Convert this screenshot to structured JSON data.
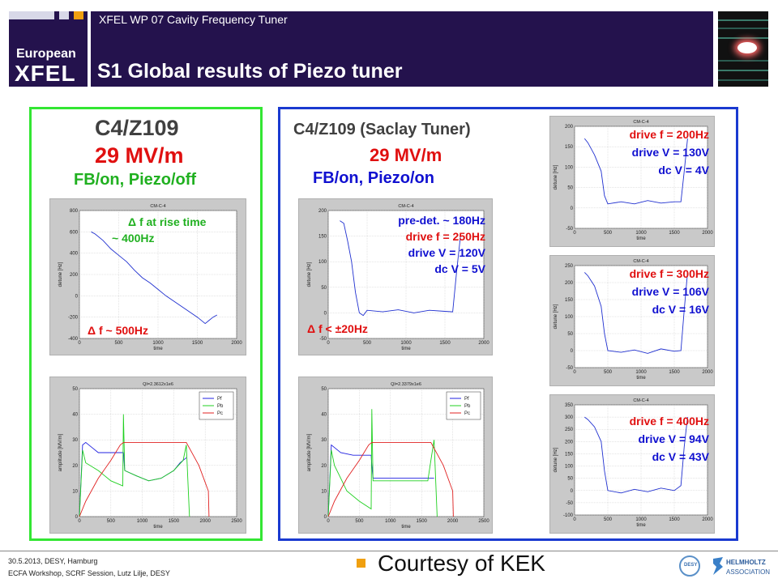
{
  "header": {
    "logo_line1": "European",
    "logo_line2": "XFEL",
    "subtitle": "XFEL WP 07 Cavity Frequency Tuner",
    "title": "S1 Global results of Piezo tuner"
  },
  "left_panel": {
    "label1": "C4/Z109",
    "label2": "29 MV/m",
    "label3": "FB/on, Piezo/off",
    "detune_plot": {
      "title": "CM-C-4",
      "xlabel": "time",
      "ylabel": "detune [Hz]",
      "ann1": "Δ f at rise time",
      "ann2": "~ 400Hz",
      "ann3": "Δ f ~ 500Hz"
    },
    "amp_plot": {
      "title": "QI=2.3612x1e6",
      "xlabel": "time",
      "ylabel": "amplitude [MV/m]"
    }
  },
  "right_panel": {
    "label1": "C4/Z109 (Saclay Tuner)",
    "label2": "29 MV/m",
    "label3": "FB/on, Piezo/on",
    "detune_plot": {
      "title": "CM-C-4",
      "xlabel": "time",
      "ylabel": "detune [Hz]",
      "ann1": "pre-det. ~ 180Hz",
      "ann2": "drive f  = 250Hz",
      "ann3": "drive V = 120V",
      "ann4": "dc V = 5V",
      "ann5": "Δ f < ±20Hz"
    },
    "amp_plot": {
      "title": "QI=2.3379x1e6",
      "xlabel": "time",
      "ylabel": "amplitude [MV/m]"
    },
    "side_plots": [
      {
        "title": "CM-C-4",
        "xlabel": "time",
        "ylabel": "detune [Hz]",
        "ann1": "drive f  = 200Hz",
        "ann2": "drive V = 130V",
        "ann3": "dc V = 4V"
      },
      {
        "title": "CM-C-4",
        "xlabel": "time",
        "ylabel": "detune [Hz]",
        "ann1": "drive f  = 300Hz",
        "ann2": "drive V = 106V",
        "ann3": "dc V = 16V"
      },
      {
        "title": "CM-C-4",
        "xlabel": "time",
        "ylabel": "detune [Hz]",
        "ann1": "drive f  = 400Hz",
        "ann2": "drive V = 94V",
        "ann3": "dc V = 43V"
      }
    ]
  },
  "chart_data": [
    {
      "type": "line",
      "title": "CM-C-4",
      "xlabel": "time",
      "ylabel": "detune [Hz]",
      "xlim": [
        0,
        2000
      ],
      "ylim": [
        -400,
        800
      ],
      "xticks": [
        0,
        500,
        1000,
        1500,
        2000
      ],
      "yticks": [
        -400,
        -200,
        0,
        200,
        400,
        600,
        800
      ],
      "series": [
        {
          "x": [
            150,
            200,
            300,
            400,
            500,
            600,
            700,
            800,
            900,
            1000,
            1100,
            1200,
            1300,
            1400,
            1500,
            1600,
            1650,
            1700,
            1750
          ],
          "y": [
            600,
            580,
            520,
            440,
            380,
            320,
            240,
            170,
            120,
            60,
            0,
            -50,
            -100,
            -150,
            -200,
            -260,
            -230,
            -200,
            -180
          ]
        }
      ]
    },
    {
      "type": "line",
      "title": "QI=2.3612x1e6",
      "xlabel": "time",
      "ylabel": "amplitude [MV/m]",
      "xlim": [
        0,
        2500
      ],
      "ylim": [
        0,
        50
      ],
      "xticks": [
        0,
        500,
        1000,
        1500,
        2000,
        2500
      ],
      "yticks": [
        0,
        10,
        20,
        30,
        40,
        50
      ],
      "legend": [
        "Pf",
        "Pb",
        "Pc"
      ],
      "series": [
        {
          "name": "Pf",
          "x": [
            0,
            50,
            100,
            200,
            300,
            500,
            700,
            720,
            900,
            1100,
            1300,
            1500,
            1600,
            1700
          ],
          "y": [
            0,
            28,
            29,
            27,
            25,
            25,
            25,
            18,
            16,
            14,
            15,
            18,
            21,
            23
          ]
        },
        {
          "name": "Pb",
          "x": [
            0,
            50,
            100,
            300,
            500,
            690,
            700,
            720,
            900,
            1100,
            1300,
            1500,
            1650,
            1700,
            1750
          ],
          "y": [
            0,
            26,
            21,
            18,
            14,
            12,
            40,
            18,
            16,
            14,
            15,
            18,
            22,
            28,
            0
          ]
        },
        {
          "name": "Pc",
          "x": [
            0,
            100,
            300,
            500,
            650,
            700,
            1000,
            1700,
            1900,
            2050,
            2060
          ],
          "y": [
            0,
            6,
            15,
            22,
            28,
            29,
            29,
            29,
            20,
            10,
            0
          ]
        }
      ]
    },
    {
      "type": "line",
      "title": "CM-C-4",
      "xlabel": "time",
      "ylabel": "detune [Hz]",
      "xlim": [
        0,
        2000
      ],
      "ylim": [
        -50,
        200
      ],
      "xticks": [
        0,
        500,
        1000,
        1500,
        2000
      ],
      "yticks": [
        -50,
        0,
        50,
        100,
        150,
        200
      ],
      "series": [
        {
          "x": [
            150,
            200,
            250,
            300,
            350,
            400,
            450,
            500,
            700,
            900,
            1100,
            1300,
            1500,
            1600,
            1650,
            1700
          ],
          "y": [
            180,
            175,
            140,
            100,
            40,
            0,
            -5,
            5,
            2,
            6,
            0,
            5,
            3,
            2,
            80,
            150
          ]
        }
      ]
    },
    {
      "type": "line",
      "title": "QI=2.3379x1e6",
      "xlabel": "time",
      "ylabel": "amplitude [MV/m]",
      "xlim": [
        0,
        2500
      ],
      "ylim": [
        0,
        50
      ],
      "xticks": [
        0,
        500,
        1000,
        1500,
        2000,
        2500
      ],
      "yticks": [
        0,
        10,
        20,
        30,
        40,
        50
      ],
      "legend": [
        "Pf",
        "Pb",
        "Pc"
      ],
      "series": [
        {
          "name": "Pf",
          "x": [
            0,
            50,
            100,
            200,
            400,
            690,
            700,
            720,
            1000,
            1300,
            1600,
            1700
          ],
          "y": [
            0,
            28,
            27,
            25,
            24,
            24,
            20,
            15,
            15,
            15,
            15,
            15
          ]
        },
        {
          "name": "Pb",
          "x": [
            0,
            50,
            100,
            200,
            300,
            500,
            690,
            700,
            720,
            1000,
            1300,
            1600,
            1650,
            1700,
            1750
          ],
          "y": [
            0,
            26,
            20,
            15,
            10,
            6,
            3,
            42,
            14,
            14,
            14,
            14,
            22,
            30,
            0
          ]
        },
        {
          "name": "Pc",
          "x": [
            0,
            100,
            300,
            500,
            650,
            700,
            1000,
            1650,
            1850,
            2000,
            2010
          ],
          "y": [
            0,
            6,
            15,
            22,
            28,
            29,
            29,
            29,
            20,
            10,
            0
          ]
        }
      ]
    },
    {
      "type": "line",
      "title": "CM-C-4",
      "xlabel": "time",
      "ylabel": "detune [Hz]",
      "xlim": [
        0,
        2000
      ],
      "ylim": [
        -50,
        200
      ],
      "xticks": [
        0,
        500,
        1000,
        1500,
        2000
      ],
      "yticks": [
        -50,
        0,
        50,
        100,
        150,
        200
      ],
      "series": [
        {
          "x": [
            150,
            200,
            300,
            400,
            450,
            500,
            700,
            900,
            1100,
            1300,
            1500,
            1600,
            1650,
            1700
          ],
          "y": [
            170,
            160,
            130,
            90,
            30,
            10,
            15,
            10,
            18,
            12,
            15,
            15,
            90,
            170
          ]
        }
      ]
    },
    {
      "type": "line",
      "title": "CM-C-4",
      "xlabel": "time",
      "ylabel": "detune [Hz]",
      "xlim": [
        0,
        2000
      ],
      "ylim": [
        -50,
        250
      ],
      "xticks": [
        0,
        500,
        1000,
        1500,
        2000
      ],
      "yticks": [
        -50,
        0,
        50,
        100,
        150,
        200,
        250
      ],
      "series": [
        {
          "x": [
            150,
            200,
            300,
            400,
            450,
            500,
            700,
            900,
            1100,
            1300,
            1500,
            1600,
            1650,
            1700
          ],
          "y": [
            230,
            220,
            190,
            130,
            50,
            0,
            -5,
            2,
            -8,
            5,
            -2,
            0,
            120,
            230
          ]
        }
      ]
    },
    {
      "type": "line",
      "title": "CM-C-4",
      "xlabel": "time",
      "ylabel": "detune [Hz]",
      "xlim": [
        0,
        2000
      ],
      "ylim": [
        -100,
        350
      ],
      "xticks": [
        0,
        500,
        1000,
        1500,
        2000
      ],
      "yticks": [
        -100,
        -50,
        0,
        50,
        100,
        150,
        200,
        250,
        300,
        350
      ],
      "series": [
        {
          "x": [
            150,
            200,
            300,
            400,
            450,
            500,
            700,
            900,
            1100,
            1300,
            1500,
            1600,
            1650,
            1700
          ],
          "y": [
            300,
            290,
            260,
            200,
            80,
            0,
            -10,
            5,
            -5,
            10,
            0,
            20,
            180,
            300
          ]
        }
      ]
    }
  ],
  "footer": {
    "line1": "30.5.2013, DESY, Hamburg",
    "line2": "ECFA Workshop, SCRF Session, Lutz Lilje, DESY",
    "courtesy": "Courtesy of KEK",
    "logo_desy": "DESY",
    "logo_helm1": "HELMHOLTZ",
    "logo_helm2": "ASSOCIATION"
  },
  "colors": {
    "header_bg": "#24124d",
    "accent": "#f0a010",
    "panel_left_border": "#33e633",
    "panel_right_border": "#1a3ad0",
    "series_Pf": "#2020e0",
    "series_Pb": "#20d020",
    "series_Pc": "#e02020"
  }
}
